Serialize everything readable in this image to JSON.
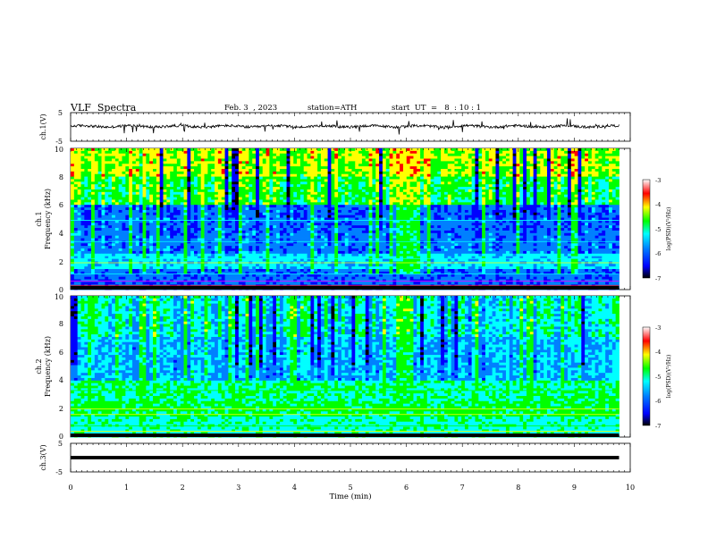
{
  "header": {
    "title": "VLF  Spectra",
    "date": "Feb. 3  , 2023",
    "station": "station=ATH",
    "start_ut": "start  UT  =   8  : 10 : 1"
  },
  "chart_data": [
    {
      "type": "line",
      "panel": "ch1-waveform",
      "ylabel": "ch.1(V)",
      "ylim": [
        -5,
        5
      ],
      "yticks": [
        "5",
        "-5"
      ],
      "xlim": [
        0,
        10
      ],
      "baseline": 0.2,
      "color": "#000000"
    },
    {
      "type": "heatmap",
      "panel": "ch1-spectrogram",
      "ylabel": "ch.1\nFrequency (kHz)",
      "ylim": [
        0,
        10
      ],
      "yticks": [
        "0",
        "2",
        "4",
        "6",
        "8",
        "10"
      ],
      "xlim": [
        0,
        9.8
      ],
      "colorbar": {
        "label": "log(PSD)(V²/Hz)",
        "range": [
          -7,
          -3
        ],
        "ticks": [
          "-3",
          "-4",
          "-5",
          "-6",
          "-7"
        ]
      }
    },
    {
      "type": "heatmap",
      "panel": "ch2-spectrogram",
      "ylabel": "ch.2\nFrequency (kHz)",
      "ylim": [
        0,
        10
      ],
      "yticks": [
        "0",
        "2",
        "4",
        "6",
        "8",
        "10"
      ],
      "xlim": [
        0,
        9.8
      ],
      "colorbar": {
        "label": "log(PSD)(V²/Hz)",
        "range": [
          -7,
          -3
        ],
        "ticks": [
          "-3",
          "-4",
          "-5",
          "-6",
          "-7"
        ]
      }
    },
    {
      "type": "line",
      "panel": "ch3-waveform",
      "ylabel": "ch.3(V)",
      "ylim": [
        -5,
        5
      ],
      "yticks": [
        "5",
        "-5"
      ],
      "xlim": [
        0,
        10
      ],
      "baseline": 0.0,
      "color": "#000000"
    }
  ],
  "xaxis": {
    "label": "Time  (min)",
    "range": [
      0,
      10
    ],
    "ticks": [
      "0",
      "1",
      "2",
      "3",
      "4",
      "5",
      "6",
      "7",
      "8",
      "9",
      "10"
    ]
  },
  "colors": {
    "colormap": [
      "#000000",
      "#0000ff",
      "#0080ff",
      "#00ffff",
      "#00ff00",
      "#ffff00",
      "#ff0000",
      "#ffffff"
    ]
  }
}
